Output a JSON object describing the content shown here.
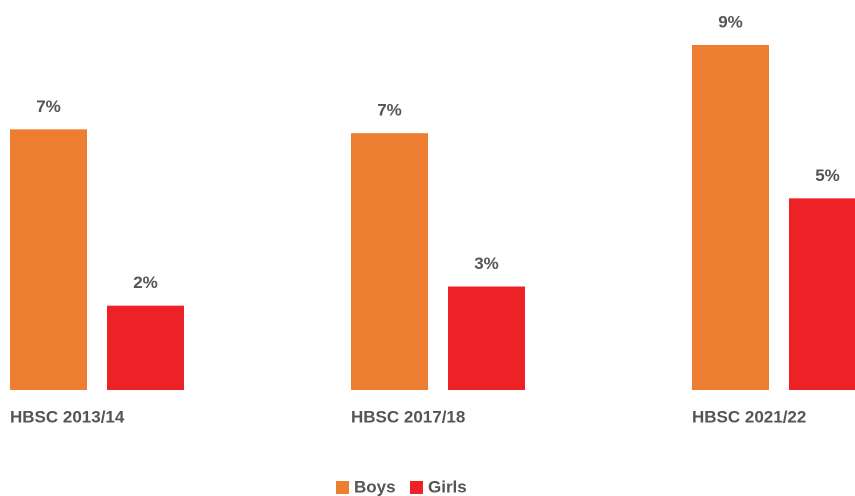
{
  "chart_data": {
    "type": "bar",
    "categories": [
      "HBSC 2013/14",
      "HBSC 2017/18",
      "HBSC 2021/22"
    ],
    "series": [
      {
        "name": "Boys",
        "color": "#ED7D31",
        "values": [
          6.8,
          6.7,
          9.0
        ],
        "value_labels": [
          "7%",
          "7%",
          "9%"
        ]
      },
      {
        "name": "Girls",
        "color": "#EC2227",
        "values": [
          2.2,
          2.7,
          5.0
        ],
        "value_labels": [
          "2%",
          "3%",
          "5%"
        ]
      }
    ]
  }
}
